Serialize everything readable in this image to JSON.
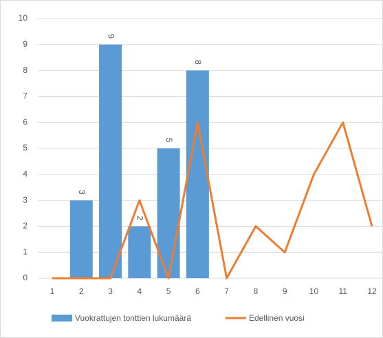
{
  "chart_data": {
    "type": "bar",
    "categories": [
      "1",
      "2",
      "3",
      "4",
      "5",
      "6",
      "7",
      "8",
      "9",
      "10",
      "11",
      "12"
    ],
    "series": [
      {
        "name": "Vuokrattujen tonttien lukumäärä",
        "type": "bar",
        "color": "#5b9bd5",
        "values": [
          null,
          3,
          9,
          2,
          5,
          8,
          null,
          null,
          null,
          null,
          null,
          null
        ]
      },
      {
        "name": "Edellinen vuosi",
        "type": "line",
        "color": "#ed7d31",
        "values": [
          0,
          0,
          0,
          3,
          0,
          6,
          0,
          2,
          1,
          4,
          6,
          2
        ]
      }
    ],
    "ylim": [
      0,
      10
    ],
    "yticks": [
      0,
      1,
      2,
      3,
      4,
      5,
      6,
      7,
      8,
      9,
      10
    ],
    "grid": true,
    "legend": "bottom"
  }
}
